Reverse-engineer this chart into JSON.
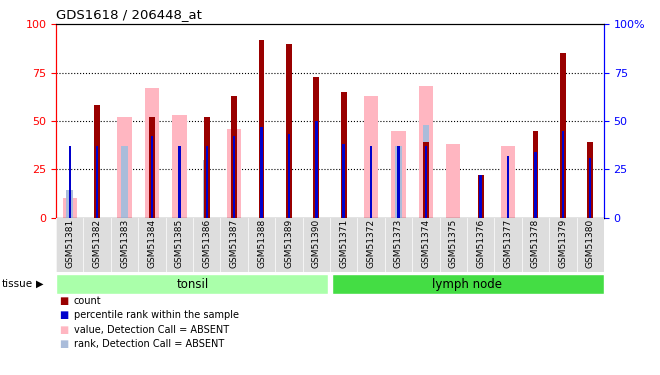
{
  "title": "GDS1618 / 206448_at",
  "samples": [
    "GSM51381",
    "GSM51382",
    "GSM51383",
    "GSM51384",
    "GSM51385",
    "GSM51386",
    "GSM51387",
    "GSM51388",
    "GSM51389",
    "GSM51390",
    "GSM51371",
    "GSM51372",
    "GSM51373",
    "GSM51374",
    "GSM51375",
    "GSM51376",
    "GSM51377",
    "GSM51378",
    "GSM51379",
    "GSM51380"
  ],
  "count_values": [
    0,
    58,
    0,
    52,
    0,
    52,
    63,
    92,
    90,
    73,
    65,
    0,
    0,
    39,
    0,
    22,
    0,
    45,
    85,
    39
  ],
  "rank_values": [
    37,
    37,
    0,
    42,
    37,
    37,
    42,
    47,
    43,
    50,
    38,
    37,
    37,
    37,
    0,
    22,
    32,
    34,
    45,
    31
  ],
  "absent_value_vals": [
    10,
    0,
    52,
    67,
    53,
    0,
    46,
    0,
    0,
    0,
    0,
    63,
    45,
    68,
    38,
    0,
    37,
    0,
    0,
    0
  ],
  "absent_rank_vals": [
    14,
    0,
    37,
    43,
    0,
    30,
    0,
    0,
    0,
    0,
    0,
    0,
    37,
    48,
    0,
    0,
    0,
    0,
    0,
    0
  ],
  "tonsil_count": 10,
  "lymph_count": 10,
  "tonsil_label": "tonsil",
  "lymph_label": "lymph node",
  "tissue_label": "tissue",
  "ylim": [
    0,
    100
  ],
  "color_count": "#990000",
  "color_rank": "#0000CC",
  "color_absent_value": "#FFB6C1",
  "color_absent_rank": "#AABCDA",
  "tonsil_bg": "#AAFFAA",
  "lymph_bg": "#44DD44",
  "xtick_bg": "#DDDDDD",
  "legend_items": [
    "count",
    "percentile rank within the sample",
    "value, Detection Call = ABSENT",
    "rank, Detection Call = ABSENT"
  ],
  "legend_colors": [
    "#990000",
    "#0000CC",
    "#FFB6C1",
    "#AABCDA"
  ],
  "bar_width": 0.35,
  "dotted_lines": [
    25,
    50,
    75
  ]
}
